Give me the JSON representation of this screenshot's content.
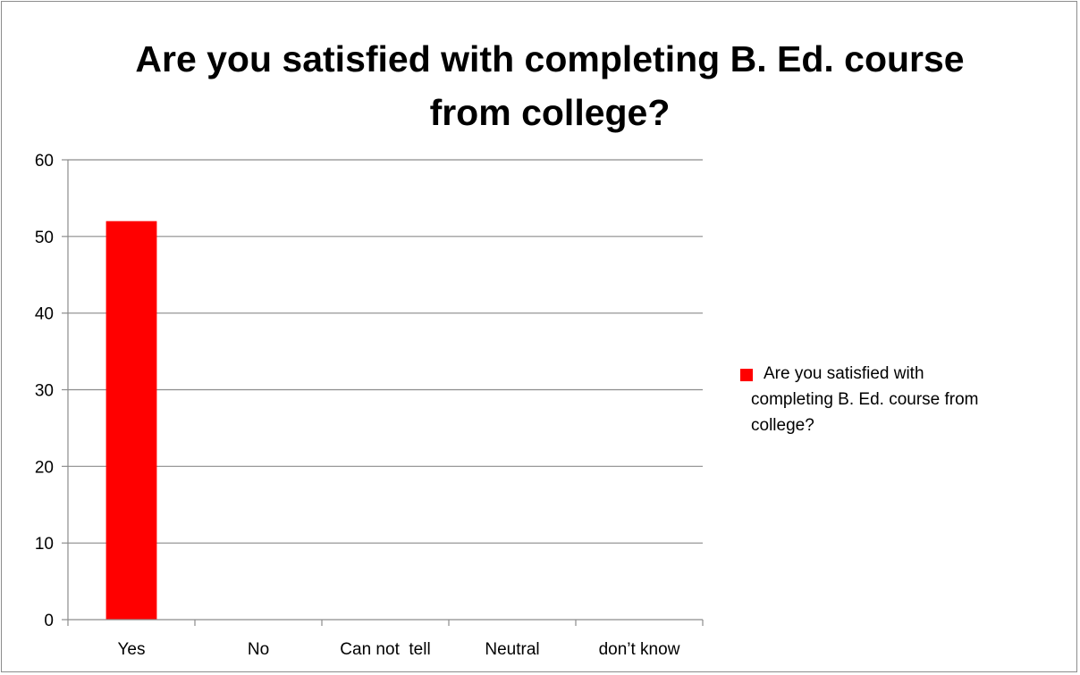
{
  "chart_data": {
    "type": "bar",
    "title_lines": [
      "Are you satisfied with completing B. Ed. course",
      "from college?"
    ],
    "categories": [
      "Yes",
      "No",
      "Can not  tell",
      "Neutral",
      "don’t know"
    ],
    "series": [
      {
        "name": "Are you satisfied with completing B. Ed. course from college?",
        "name_lines": [
          "Are you satisfied with",
          "completing B. Ed. course from",
          "college?"
        ],
        "values": [
          52,
          0,
          0,
          0,
          0
        ],
        "color": "#ff0000"
      }
    ],
    "ylim": [
      0,
      60
    ],
    "yticks": [
      0,
      10,
      20,
      30,
      40,
      50,
      60
    ],
    "grid": true,
    "legend_position": "right"
  }
}
